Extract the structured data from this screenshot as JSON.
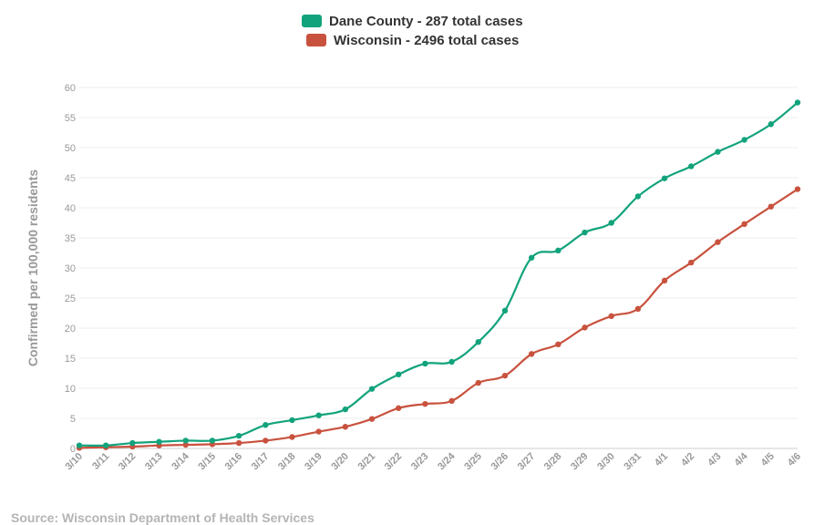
{
  "chart_data": {
    "type": "line",
    "title": "",
    "xlabel": "",
    "ylabel": "Confirmed per 100,000 residents",
    "ylim": [
      0,
      60
    ],
    "yticks": [
      0,
      5,
      10,
      15,
      20,
      25,
      30,
      35,
      40,
      45,
      50,
      55,
      60
    ],
    "grid": true,
    "legend_position": "top-center",
    "categories": [
      "3/10",
      "3/11",
      "3/12",
      "3/13",
      "3/14",
      "3/15",
      "3/16",
      "3/17",
      "3/18",
      "3/19",
      "3/20",
      "3/21",
      "3/22",
      "3/23",
      "3/24",
      "3/25",
      "3/26",
      "3/27",
      "3/28",
      "3/29",
      "3/30",
      "3/31",
      "4/1",
      "4/2",
      "4/3",
      "4/4",
      "4/5",
      "4/6"
    ],
    "series": [
      {
        "name": "Dane County - 287 total cases",
        "color": "#13a37c",
        "values": [
          0.5,
          0.5,
          0.9,
          1.1,
          1.3,
          1.3,
          2.1,
          3.9,
          4.7,
          5.5,
          6.5,
          9.9,
          12.3,
          14.1,
          14.4,
          17.7,
          22.9,
          31.7,
          32.9,
          35.9,
          37.5,
          41.9,
          44.9,
          46.9,
          49.3,
          51.3,
          53.9,
          57.5
        ]
      },
      {
        "name": "Wisconsin - 2496 total cases",
        "color": "#c8523e",
        "values": [
          0.1,
          0.2,
          0.3,
          0.5,
          0.6,
          0.7,
          0.9,
          1.3,
          1.9,
          2.8,
          3.6,
          4.9,
          6.7,
          7.4,
          7.9,
          10.9,
          12.1,
          15.7,
          17.3,
          20.1,
          22.0,
          23.2,
          27.9,
          30.9,
          34.3,
          37.3,
          40.2,
          43.1
        ]
      }
    ]
  },
  "source": "Source: Wisconsin Department of Health Services"
}
